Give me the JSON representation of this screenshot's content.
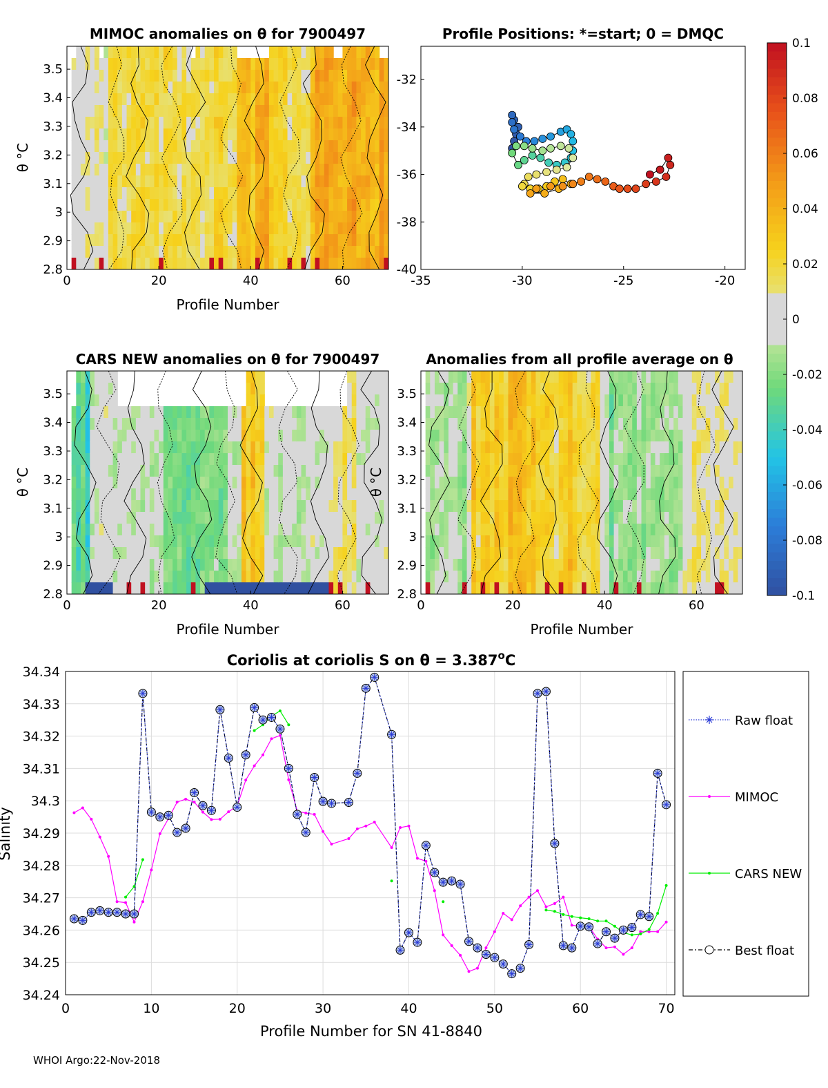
{
  "footer": "WHOI Argo:22-Nov-2018",
  "colors": {
    "raw": "#2a3bd6",
    "mimoc": "#ff00ff",
    "cars": "#00ee00",
    "best": "#000000",
    "grid": "#dcdcdc"
  },
  "chart_data": [
    {
      "type": "heatmap",
      "id": "mimoc",
      "title": "MIMOC anomalies on θ  for 7900497",
      "xlabel": "Profile Number",
      "ylabel": "θ °C",
      "xlim": [
        0,
        70
      ],
      "ylim": [
        2.8,
        3.58
      ],
      "xticks": [
        0,
        20,
        40,
        60
      ],
      "yticks": [
        2.8,
        2.9,
        3,
        3.1,
        3.2,
        3.3,
        3.4,
        3.5
      ],
      "ytick_labels": [
        "2.8",
        "2.9",
        "3",
        "3.1",
        "3.2",
        "3.3",
        "3.4",
        "3.5"
      ],
      "columns": 70,
      "rows": 19,
      "seed": 3,
      "bias": 0.018,
      "warm_bands": [
        [
          36,
          44,
          0.02
        ],
        [
          52,
          70,
          0.025
        ]
      ],
      "cool_bands": [
        [
          0,
          8,
          -0.012
        ]
      ],
      "missing_top_cols": [
        0,
        6,
        26,
        36,
        37,
        38,
        39,
        40,
        41,
        42,
        57,
        58,
        67,
        68,
        69
      ]
    },
    {
      "type": "scatter",
      "id": "positions",
      "title": "Profile Positions: *=start; 0 = DMQC",
      "xlim": [
        -35,
        -19
      ],
      "ylim": [
        -40,
        -30.6
      ],
      "xticks": [
        -35,
        -30,
        -25,
        -20
      ],
      "yticks": [
        -40,
        -38,
        -36,
        -34,
        -32
      ],
      "lon": [
        -30.5,
        -30.4,
        -30.3,
        -30.2,
        -30.4,
        -30.5,
        -30.5,
        -30.4,
        -30.1,
        -29.8,
        -29.4,
        -29.0,
        -28.6,
        -28.1,
        -27.8,
        -27.6,
        -27.5,
        -27.5,
        -27.6,
        -27.9,
        -28.3,
        -28.7,
        -29.1,
        -29.5,
        -29.9,
        -30.2,
        -30.5,
        -30.3,
        -29.9,
        -29.5,
        -29.0,
        -28.6,
        -28.1,
        -27.7,
        -27.5,
        -27.8,
        -28.3,
        -28.8,
        -29.3,
        -29.7,
        -29.9,
        -30.0,
        -29.6,
        -29.2,
        -28.8,
        -28.4,
        -28.0,
        -27.6,
        -28.2,
        -28.9,
        -29.6,
        -29.3,
        -28.6,
        -28.0,
        -27.5,
        -27.1,
        -26.7,
        -26.3,
        -25.9,
        -25.5,
        -25.2,
        -24.8,
        -24.4,
        -23.9,
        -23.4,
        -22.9,
        -22.7,
        -22.8,
        -23.2,
        -23.7
      ],
      "lat": [
        -34.9,
        -34.6,
        -34.3,
        -34.0,
        -33.7,
        -33.5,
        -33.8,
        -34.1,
        -34.4,
        -34.6,
        -34.6,
        -34.5,
        -34.4,
        -34.2,
        -34.1,
        -34.3,
        -34.6,
        -35.0,
        -35.3,
        -35.5,
        -35.6,
        -35.5,
        -35.3,
        -35.2,
        -35.4,
        -35.6,
        -35.1,
        -34.8,
        -34.8,
        -34.9,
        -35.0,
        -34.9,
        -34.8,
        -34.9,
        -35.3,
        -35.7,
        -35.8,
        -35.9,
        -36.0,
        -36.1,
        -36.4,
        -36.5,
        -36.6,
        -36.6,
        -36.5,
        -36.3,
        -36.2,
        -36.4,
        -36.6,
        -36.8,
        -36.8,
        -36.6,
        -36.5,
        -36.5,
        -36.4,
        -36.3,
        -36.1,
        -36.2,
        -36.3,
        -36.5,
        -36.6,
        -36.6,
        -36.6,
        -36.4,
        -36.3,
        -36.1,
        -35.6,
        -35.3,
        -35.8,
        -36.0
      ],
      "colormap": [
        "#3050a0",
        "#2c7dd8",
        "#22c4e6",
        "#6fd97a",
        "#dfe9a6",
        "#f6d21c",
        "#f39a18",
        "#e8521a",
        "#c01020"
      ]
    },
    {
      "type": "heatmap",
      "id": "cars",
      "title": "CARS NEW anomalies on θ for 7900497",
      "xlabel": "Profile Number",
      "ylabel": "θ °C",
      "xlim": [
        0,
        70
      ],
      "ylim": [
        2.8,
        3.58
      ],
      "xticks": [
        0,
        20,
        40,
        60
      ],
      "yticks": [
        2.8,
        2.9,
        3,
        3.1,
        3.2,
        3.3,
        3.4,
        3.5
      ],
      "ytick_labels": [
        "2.8",
        "2.9",
        "3",
        "3.1",
        "3.2",
        "3.3",
        "3.4",
        "3.5"
      ],
      "columns": 70,
      "rows": 19,
      "seed": 11,
      "bias": -0.004,
      "warm_bands": [
        [
          37,
          42,
          0.035
        ],
        [
          56,
          62,
          0.015
        ]
      ],
      "cool_bands": [
        [
          0,
          4,
          -0.035
        ],
        [
          20,
          34,
          -0.02
        ]
      ],
      "missing_top_cols": [
        0,
        10,
        11,
        12,
        13,
        14,
        15,
        16,
        17,
        18,
        19,
        20,
        21,
        22,
        23,
        24,
        25,
        26,
        27,
        28,
        29,
        30,
        31,
        32,
        33,
        34,
        35,
        36,
        37,
        42,
        43,
        44,
        45,
        46,
        47,
        48,
        49,
        50,
        51,
        52,
        53,
        54,
        55,
        56,
        57,
        58,
        59
      ]
    },
    {
      "type": "heatmap",
      "id": "average",
      "title": "Anomalies from all profile average on θ",
      "xlabel": "Profile Number",
      "ylabel": "θ °C",
      "xlim": [
        0,
        70
      ],
      "ylim": [
        2.8,
        3.58
      ],
      "xticks": [
        0,
        20,
        40,
        60
      ],
      "yticks": [
        2.8,
        2.9,
        3,
        3.1,
        3.2,
        3.3,
        3.4,
        3.5
      ],
      "ytick_labels": [
        "2.8",
        "2.9",
        "3",
        "3.1",
        "3.2",
        "3.3",
        "3.4",
        "3.5"
      ],
      "columns": 70,
      "rows": 19,
      "seed": 21,
      "bias": 0.0,
      "warm_bands": [
        [
          10,
          38,
          0.03
        ],
        [
          56,
          68,
          0.008
        ]
      ],
      "cool_bands": [
        [
          0,
          9,
          -0.012
        ],
        [
          40,
          56,
          -0.018
        ]
      ],
      "missing_top_cols": []
    },
    {
      "type": "colorbar",
      "id": "colorbar",
      "range": [
        -0.1,
        0.1
      ],
      "ticks": [
        0.1,
        0.08,
        0.06,
        0.04,
        0.02,
        0,
        -0.02,
        -0.04,
        -0.06,
        -0.08,
        -0.1
      ],
      "tick_labels": [
        "0.1",
        "0.08",
        "0.06",
        "0.04",
        "0.02",
        "0",
        "-0.02",
        "-0.04",
        "-0.06",
        "-0.08",
        "-0.1"
      ]
    },
    {
      "type": "line",
      "id": "salinity",
      "title": "Coriolis at coriolis S on θ = 3.387°C",
      "title_main": "Coriolis at coriolis S on θ = 3.387",
      "title_sup": "o",
      "title_end": "C",
      "xlabel": "Profile Number for SN 41-8840",
      "ylabel": "Salinity",
      "xlim": [
        0,
        71
      ],
      "ylim": [
        34.24,
        34.34
      ],
      "xticks": [
        0,
        10,
        20,
        30,
        40,
        50,
        60,
        70
      ],
      "yticks": [
        34.24,
        34.25,
        34.26,
        34.27,
        34.28,
        34.29,
        34.3,
        34.31,
        34.32,
        34.33,
        34.34
      ],
      "ytick_labels": [
        "34.24",
        "34.25",
        "34.26",
        "34.27",
        "34.28",
        "34.29",
        "34.3",
        "34.31",
        "34.32",
        "34.33",
        "34.34"
      ],
      "legend": [
        "Raw float",
        "MIMOC",
        "CARS NEW",
        "Best float"
      ],
      "legend_position": "right",
      "series": [
        {
          "name": "Raw float",
          "x": [
            1,
            2,
            3,
            4,
            5,
            6,
            7,
            8,
            9,
            10,
            11,
            12,
            13,
            14,
            15,
            16,
            17,
            18,
            19,
            20,
            21,
            22,
            23,
            24,
            25,
            26,
            27,
            28,
            29,
            30,
            31,
            33,
            34,
            35,
            36,
            38,
            39,
            40,
            41,
            42,
            43,
            44,
            45,
            46,
            47,
            48,
            49,
            50,
            51,
            52,
            53,
            54,
            55,
            56,
            57,
            58,
            59,
            60,
            61,
            62,
            63,
            64,
            65,
            66,
            67,
            68,
            69,
            70
          ],
          "values": [
            34.2635,
            34.263,
            34.2655,
            34.266,
            34.2655,
            34.2655,
            34.265,
            34.265,
            34.3332,
            34.2965,
            34.295,
            34.2955,
            34.2902,
            34.2915,
            34.3025,
            34.2985,
            34.297,
            34.3282,
            34.3132,
            34.298,
            34.3142,
            34.3288,
            34.325,
            34.3258,
            34.3222,
            34.31,
            34.2958,
            34.2902,
            34.3072,
            34.2998,
            34.2992,
            34.2995,
            34.3085,
            34.3348,
            34.3382,
            34.3205,
            34.2538,
            34.2592,
            34.2562,
            34.2862,
            34.2778,
            34.2748,
            34.2752,
            34.2742,
            34.2565,
            34.2545,
            34.2525,
            34.2515,
            34.2495,
            34.2465,
            34.2482,
            34.2555,
            34.3332,
            34.3338,
            34.2868,
            34.2552,
            34.2545,
            34.2612,
            34.261,
            34.2558,
            34.2595,
            34.2575,
            34.26,
            34.2608,
            34.2648,
            34.2642,
            34.3085,
            34.2988
          ]
        },
        {
          "name": "MIMOC",
          "x": [
            1,
            2,
            3,
            4,
            5,
            6,
            7,
            8,
            9,
            10,
            11,
            12,
            13,
            14,
            15,
            16,
            17,
            18,
            19,
            20,
            21,
            22,
            23,
            24,
            25,
            26,
            27,
            28,
            29,
            30,
            31,
            33,
            34,
            35,
            36,
            38,
            39,
            40,
            41,
            42,
            43,
            44,
            45,
            46,
            47,
            48,
            49,
            50,
            51,
            52,
            53,
            54,
            55,
            56,
            57,
            58,
            59,
            60,
            61,
            62,
            63,
            64,
            65,
            66,
            67,
            68,
            69,
            70
          ],
          "values": [
            34.2963,
            34.2978,
            34.2943,
            34.2888,
            34.2828,
            34.2688,
            34.2685,
            34.2625,
            34.2688,
            34.2786,
            34.2898,
            34.2945,
            34.2996,
            34.3005,
            34.2996,
            34.2965,
            34.2942,
            34.2943,
            34.2966,
            34.2984,
            34.3064,
            34.3108,
            34.3142,
            34.3192,
            34.3202,
            34.3065,
            34.2968,
            34.2962,
            34.2958,
            34.2905,
            34.2866,
            34.2883,
            34.2913,
            34.2922,
            34.2934,
            34.2855,
            34.2917,
            34.2922,
            34.2822,
            34.2813,
            34.2722,
            34.2585,
            34.2552,
            34.2522,
            34.2472,
            34.2482,
            34.2545,
            34.2595,
            34.2652,
            34.2632,
            34.2675,
            34.2702,
            34.2722,
            34.2672,
            34.2682,
            34.2702,
            34.2615,
            34.2612,
            34.2612,
            34.2572,
            34.2545,
            34.2548,
            34.2525,
            34.2545,
            34.2595,
            34.2595,
            34.2595,
            34.2625
          ]
        },
        {
          "name": "CARS NEW",
          "x": [
            7,
            8,
            9,
            22,
            23,
            24,
            25,
            26,
            38,
            44,
            56,
            57,
            58,
            59,
            60,
            61,
            62,
            63,
            64,
            65,
            66,
            67,
            68,
            69,
            70
          ],
          "values": [
            34.2702,
            34.2735,
            34.2818,
            34.3217,
            34.3235,
            34.3262,
            34.3278,
            34.3235,
            34.2752,
            34.2688,
            34.2662,
            34.2658,
            34.2648,
            34.2642,
            34.2638,
            34.2635,
            34.2628,
            34.2628,
            34.2612,
            34.2592,
            34.2585,
            34.2588,
            34.2602,
            34.2652,
            34.2738
          ]
        },
        {
          "name": "Best float",
          "x": [
            1,
            2,
            3,
            4,
            5,
            6,
            7,
            8,
            9,
            10,
            11,
            12,
            13,
            14,
            15,
            16,
            17,
            18,
            19,
            20,
            21,
            22,
            23,
            24,
            25,
            26,
            27,
            28,
            29,
            30,
            31,
            33,
            34,
            35,
            36,
            38,
            39,
            40,
            41,
            42,
            43,
            44,
            45,
            46,
            47,
            48,
            49,
            50,
            51,
            52,
            53,
            54,
            55,
            56,
            57,
            58,
            59,
            60,
            61,
            62,
            63,
            64,
            65,
            66,
            67,
            68,
            69,
            70
          ],
          "values": [
            34.2635,
            34.263,
            34.2655,
            34.266,
            34.2655,
            34.2655,
            34.265,
            34.265,
            34.3332,
            34.2965,
            34.295,
            34.2955,
            34.2902,
            34.2915,
            34.3025,
            34.2985,
            34.297,
            34.3282,
            34.3132,
            34.298,
            34.3142,
            34.3288,
            34.325,
            34.3258,
            34.3222,
            34.31,
            34.2958,
            34.2902,
            34.3072,
            34.2998,
            34.2992,
            34.2995,
            34.3085,
            34.3348,
            34.3382,
            34.3205,
            34.2538,
            34.2592,
            34.2562,
            34.2862,
            34.2778,
            34.2748,
            34.2752,
            34.2742,
            34.2565,
            34.2545,
            34.2525,
            34.2515,
            34.2495,
            34.2465,
            34.2482,
            34.2555,
            34.3332,
            34.3338,
            34.2868,
            34.2552,
            34.2545,
            34.2612,
            34.261,
            34.2558,
            34.2595,
            34.2575,
            34.26,
            34.2608,
            34.2648,
            34.2642,
            34.3085,
            34.2988
          ]
        }
      ]
    }
  ]
}
